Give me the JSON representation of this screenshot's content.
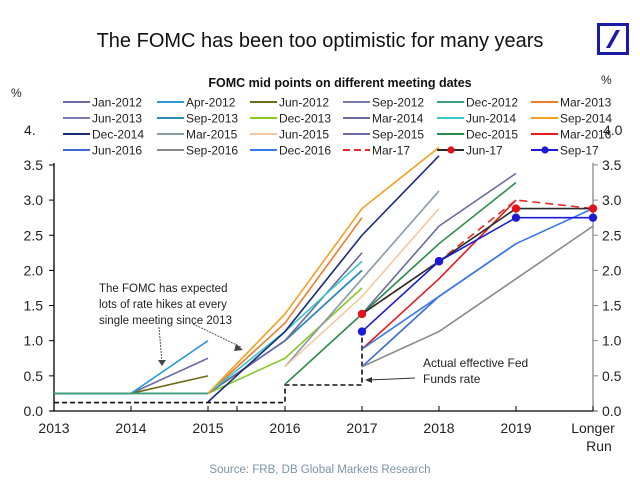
{
  "header": {
    "title": "The FOMC has been too optimistic for many years",
    "logo": "deutsche-bank-logo"
  },
  "source": "Source: FRB, DB Global Markets Research",
  "chart_data": {
    "type": "line",
    "title": "FOMC mid points on different meeting dates",
    "ylabel_left": "%",
    "ylabel_right": "%",
    "ylim": [
      0,
      4.0
    ],
    "y_ticks": [
      "0.0",
      "0.5",
      "1.0",
      "1.5",
      "2.0",
      "2.5",
      "3.0",
      "3.5"
    ],
    "y_tick_left_top_partial": "4.",
    "y_tick_right_top": "4.0",
    "x_categories": [
      "2013",
      "2014",
      "2015",
      "2016",
      "2017",
      "2018",
      "2019",
      "Longer Run"
    ],
    "legend_placement": "top",
    "series": [
      {
        "name": "Jan-2012",
        "color": "#6a6aa8",
        "x": [
          0,
          1,
          2
        ],
        "y": [
          0.25,
          0.25,
          0.75
        ]
      },
      {
        "name": "Apr-2012",
        "color": "#2a9ad2",
        "x": [
          0,
          1,
          2
        ],
        "y": [
          0.25,
          0.25,
          1.0
        ]
      },
      {
        "name": "Jun-2012",
        "color": "#6b6b1a",
        "x": [
          0,
          1,
          2
        ],
        "y": [
          0.25,
          0.25,
          0.5
        ]
      },
      {
        "name": "Sep-2012",
        "color": "#7a7aa8",
        "x": [
          0,
          1,
          2
        ],
        "y": [
          0.25,
          0.25,
          0.25
        ]
      },
      {
        "name": "Dec-2012",
        "color": "#3aa07a",
        "x": [
          0,
          1,
          2
        ],
        "y": [
          0.25,
          0.25,
          0.25
        ]
      },
      {
        "name": "Mar-2013",
        "color": "#f07a2a",
        "x": [
          2,
          3,
          4
        ],
        "y": [
          0.25,
          1.25,
          2.75
        ]
      },
      {
        "name": "Jun-2013",
        "color": "#7a7ab8",
        "x": [
          2,
          3,
          4
        ],
        "y": [
          0.25,
          1.0,
          2.0
        ]
      },
      {
        "name": "Sep-2013",
        "color": "#2a8aba",
        "x": [
          2,
          3,
          4
        ],
        "y": [
          0.25,
          1.0,
          2.0
        ]
      },
      {
        "name": "Dec-2013",
        "color": "#8ac82a",
        "x": [
          2,
          3,
          4
        ],
        "y": [
          0.25,
          0.75,
          1.75
        ]
      },
      {
        "name": "Mar-2014",
        "color": "#6a6a9a",
        "x": [
          2,
          3,
          4
        ],
        "y": [
          0.25,
          1.0,
          2.25
        ]
      },
      {
        "name": "Jun-2014",
        "color": "#3ac8c8",
        "x": [
          2,
          3,
          4
        ],
        "y": [
          0.25,
          1.13,
          2.13
        ]
      },
      {
        "name": "Sep-2014",
        "color": "#f5a020",
        "x": [
          2,
          3,
          4,
          5
        ],
        "y": [
          0.25,
          1.38,
          2.88,
          3.75
        ]
      },
      {
        "name": "Dec-2014",
        "color": "#1a2a7a",
        "x": [
          2,
          3,
          4,
          5
        ],
        "y": [
          0.13,
          1.13,
          2.5,
          3.63
        ]
      },
      {
        "name": "Mar-2015",
        "color": "#8a9aaa",
        "x": [
          3,
          4,
          5
        ],
        "y": [
          0.63,
          1.88,
          3.13
        ]
      },
      {
        "name": "Jun-2015",
        "color": "#f5c8a0",
        "x": [
          3,
          4,
          5
        ],
        "y": [
          0.63,
          1.63,
          2.88
        ]
      },
      {
        "name": "Sep-2015",
        "color": "#6a6aa0",
        "x": [
          4,
          5,
          6
        ],
        "y": [
          1.38,
          2.63,
          3.38
        ]
      },
      {
        "name": "Dec-2015",
        "color": "#2a8a4a",
        "x": [
          3,
          4,
          5,
          6
        ],
        "y": [
          0.38,
          1.38,
          2.38,
          3.25
        ]
      },
      {
        "name": "Mar-2016",
        "color": "#e81a1a",
        "x": [
          4,
          5,
          6
        ],
        "y": [
          0.88,
          1.88,
          3.0
        ]
      },
      {
        "name": "Jun-2016",
        "color": "#3a6ad8",
        "x": [
          4,
          5,
          6
        ],
        "y": [
          0.63,
          1.63,
          2.38
        ]
      },
      {
        "name": "Sep-2016",
        "color": "#8a8a8a",
        "x": [
          4,
          5,
          6,
          7
        ],
        "y": [
          0.63,
          1.13,
          1.88,
          2.63
        ]
      },
      {
        "name": "Dec-2016",
        "color": "#3a7ae8",
        "x": [
          4,
          5,
          6,
          7
        ],
        "y": [
          0.88,
          1.63,
          2.38,
          2.88
        ]
      },
      {
        "name": "Mar-17",
        "color": "#e82a2a",
        "dashed": true,
        "x": [
          4,
          5,
          6,
          7
        ],
        "y": [
          1.38,
          2.13,
          3.0,
          2.88
        ]
      },
      {
        "name": "Jun-17",
        "color": "#2a2a2a",
        "marker": "#e8101a",
        "x": [
          4,
          5,
          6,
          7
        ],
        "y": [
          1.38,
          2.13,
          2.88,
          2.88
        ]
      },
      {
        "name": "Sep-17",
        "color": "#1a1ad8",
        "marker": "#1a1ad8",
        "x": [
          4,
          5,
          6,
          7
        ],
        "y": [
          1.13,
          2.13,
          2.75,
          2.75
        ]
      }
    ],
    "actual_fed_funds": {
      "name": "Actual effective Fed Funds rate",
      "x": [
        0,
        3,
        3,
        4,
        4
      ],
      "y": [
        0.12,
        0.12,
        0.37,
        0.37,
        1.16
      ]
    },
    "annotations": [
      {
        "text": [
          "The FOMC has expected",
          "lots of rate hikes at every",
          "single meeting since 2013"
        ]
      },
      {
        "text": [
          "Actual effective Fed",
          "Funds rate"
        ]
      }
    ]
  }
}
